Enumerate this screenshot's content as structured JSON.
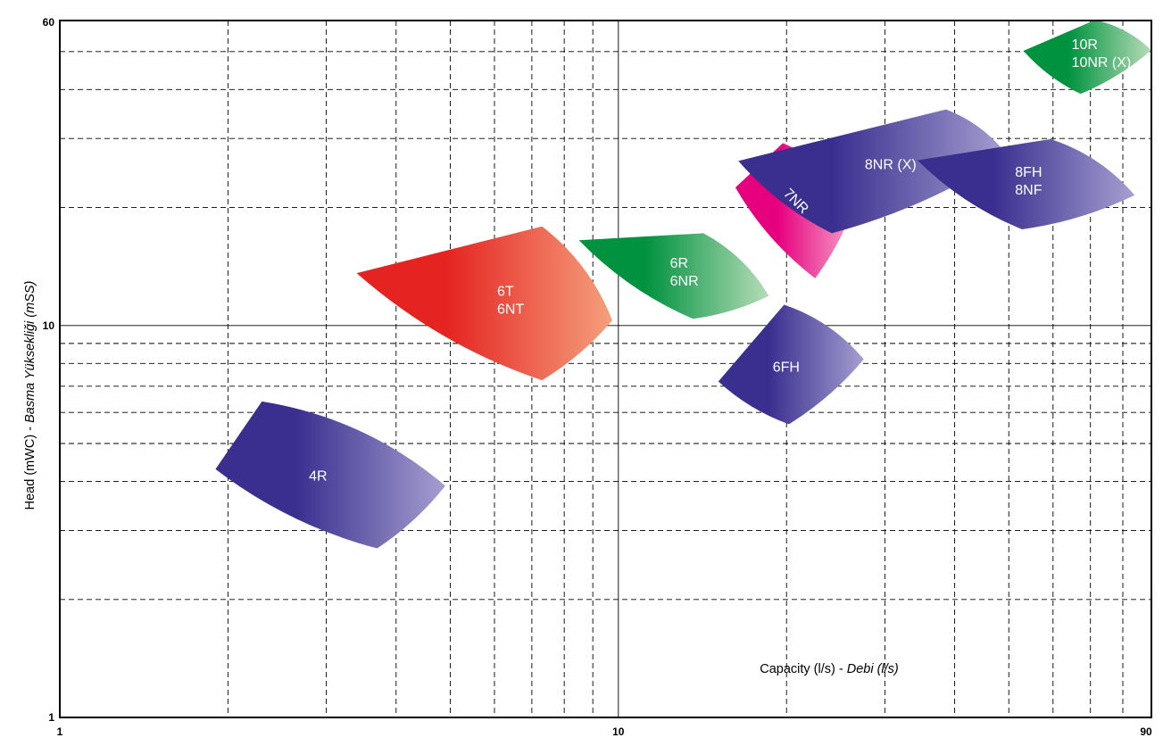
{
  "chart_data": {
    "type": "area",
    "x_scale": "log",
    "y_scale": "log",
    "xlim": [
      1,
      90
    ],
    "ylim": [
      1,
      60
    ],
    "x_ticks": [
      "1",
      "10",
      "90"
    ],
    "y_ticks": [
      "1",
      "10",
      "60"
    ],
    "grid": true,
    "xlabel": {
      "main": "Capacity (l/s) - ",
      "italic": "Debi (l/s)"
    },
    "ylabel": {
      "main": "Head (mWC) - ",
      "italic": "Basma Yüksekliği (mSS)"
    },
    "regions": [
      {
        "name": "4R",
        "lines": [
          "4R"
        ],
        "colors": [
          "#3a2f8f",
          "#a59fd0"
        ],
        "polygon": [
          [
            1.9,
            4.3
          ],
          [
            2.3,
            6.4
          ],
          [
            4.9,
            3.9
          ],
          [
            3.7,
            2.7
          ]
        ]
      },
      {
        "name": "6T 6NT",
        "lines": [
          "6T",
          "6NT"
        ],
        "colors": [
          "#e52421",
          "#f4a07c"
        ],
        "polygon": [
          [
            3.4,
            13.6
          ],
          [
            7.3,
            17.9
          ],
          [
            9.75,
            10.3
          ],
          [
            7.3,
            7.25
          ]
        ]
      },
      {
        "name": "6R 6NR",
        "lines": [
          "6R",
          "6NR"
        ],
        "colors": [
          "#00923f",
          "#b6dcb8"
        ],
        "polygon": [
          [
            8.5,
            16.5
          ],
          [
            14.2,
            17.2
          ],
          [
            18.6,
            11.9
          ],
          [
            13.6,
            10.4
          ]
        ]
      },
      {
        "name": "6FH",
        "lines": [
          "6FH"
        ],
        "colors": [
          "#3a2f8f",
          "#a59fd0"
        ],
        "polygon": [
          [
            15.1,
            7.2
          ],
          [
            19.8,
            11.3
          ],
          [
            27.5,
            8.2
          ],
          [
            20.2,
            5.6
          ]
        ]
      },
      {
        "name": "7NR",
        "lines": [
          "7NR"
        ],
        "colors": [
          "#e6007e",
          "#f6a6cb"
        ],
        "polygon": [
          [
            16.2,
            22.5
          ],
          [
            19.7,
            29.2
          ],
          [
            26.6,
            20.8
          ],
          [
            22.5,
            13.2
          ]
        ]
      },
      {
        "name": "8NR (X)",
        "lines": [
          "8NR (X)"
        ],
        "colors": [
          "#3a2f8f",
          "#a59fd0"
        ],
        "polygon": [
          [
            16.4,
            26.3
          ],
          [
            38.6,
            35.6
          ],
          [
            49.7,
            27.2
          ],
          [
            24.1,
            17.2
          ]
        ]
      },
      {
        "name": "8FH 8NF",
        "lines": [
          "8FH",
          "8NF"
        ],
        "colors": [
          "#3a2f8f",
          "#a59fd0"
        ],
        "polygon": [
          [
            34.3,
            26.4
          ],
          [
            59.4,
            29.9
          ],
          [
            84.0,
            21.5
          ],
          [
            52.8,
            17.6
          ]
        ]
      },
      {
        "name": "10R 10NR (X)",
        "lines": [
          "10R",
          "10NR (X)"
        ],
        "colors": [
          "#00923f",
          "#b6dcb8"
        ],
        "polygon": [
          [
            53.1,
            50.2
          ],
          [
            71.4,
            60.2
          ],
          [
            90.0,
            50.4
          ],
          [
            67.2,
            39.0
          ]
        ]
      }
    ]
  }
}
